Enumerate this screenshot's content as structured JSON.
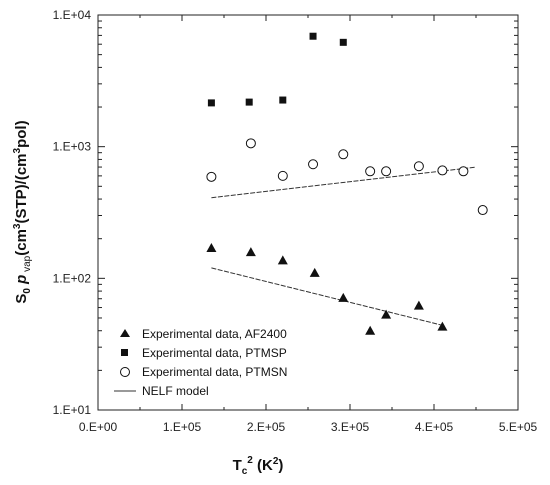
{
  "chart_data": {
    "type": "scatter",
    "title": "",
    "xlabel": {
      "base": "T",
      "sub": "c",
      "sup": "2",
      "unit": " (K",
      "unit_sup": "2",
      "unit_end": ")"
    },
    "ylabel": {
      "s": "S",
      "s_sub": "0",
      "p": " p",
      "p_sub": " vap",
      "rest1": "(cm",
      "sup1": "3",
      "rest2": "(STP)/(cm",
      "sup2": "3",
      "rest3": "pol)"
    },
    "x_scale": "linear",
    "y_scale": "log",
    "xlim": [
      0,
      500000
    ],
    "ylim": [
      10,
      10000
    ],
    "x_ticks": [
      0,
      100000,
      200000,
      300000,
      400000,
      500000
    ],
    "x_tick_labels": [
      "0.E+00",
      "1.E+05",
      "2.E+05",
      "3.E+05",
      "4.E+05",
      "5.E+05"
    ],
    "y_ticks": [
      10,
      100,
      1000,
      10000
    ],
    "y_tick_labels": [
      "1.E+01",
      "1.E+02",
      "1.E+03",
      "1.E+04"
    ],
    "grid": false,
    "legend_position": "bottom-left",
    "series": [
      {
        "name": "Experimental data, AF2400",
        "marker": "triangle",
        "x": [
          135000,
          182000,
          220000,
          258000,
          292000,
          324000,
          343000,
          382000,
          410000
        ],
        "y": [
          170,
          158,
          137,
          110,
          71,
          40,
          53,
          62,
          43
        ]
      },
      {
        "name": "Experimental data, PTMSP",
        "marker": "square",
        "x": [
          135000,
          180000,
          220000,
          256000,
          292000
        ],
        "y": [
          2150,
          2180,
          2260,
          6900,
          6200
        ]
      },
      {
        "name": "Experimental data, PTMSN",
        "marker": "circle-open",
        "x": [
          135000,
          182000,
          220000,
          256000,
          292000,
          324000,
          343000,
          382000,
          410000,
          435000,
          458000
        ],
        "y": [
          590,
          1060,
          600,
          735,
          875,
          650,
          650,
          710,
          660,
          650,
          330
        ]
      }
    ],
    "lines": [
      {
        "name": "NELF model",
        "points": [
          [
            135000,
            120
          ],
          [
            410000,
            44
          ]
        ]
      },
      {
        "points": [
          [
            135000,
            410
          ],
          [
            450000,
            700
          ]
        ]
      }
    ]
  }
}
